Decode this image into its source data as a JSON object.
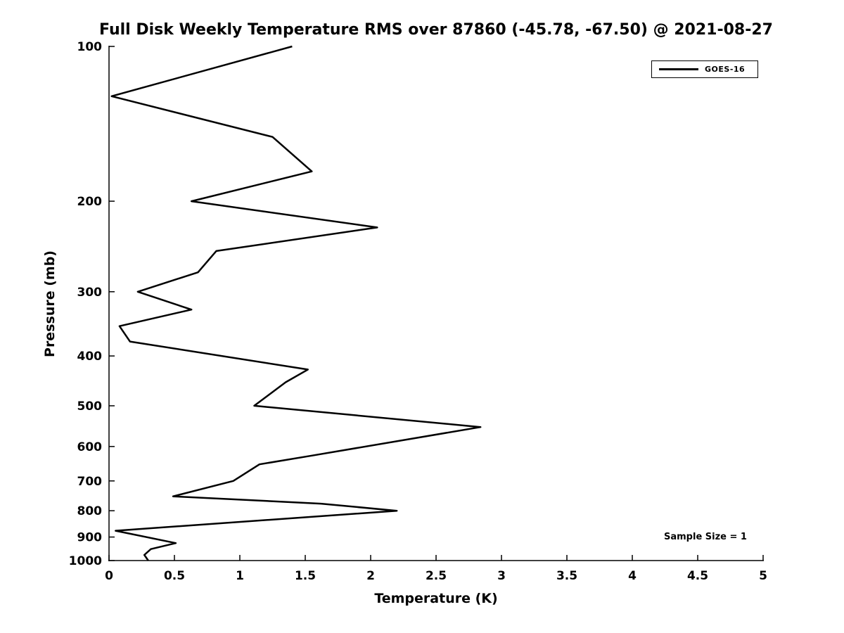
{
  "chart_data": {
    "type": "line",
    "title": "Full Disk Weekly Temperature RMS over 87860 (-45.78, -67.50) @ 2021-08-27",
    "xlabel": "Temperature (K)",
    "ylabel": "Pressure (mb)",
    "xlim": [
      0,
      5
    ],
    "ylim": [
      100,
      1000
    ],
    "yscale": "log",
    "y_inverted": true,
    "grid": false,
    "legend_position": "top-right",
    "xticks": [
      0,
      0.5,
      1,
      1.5,
      2,
      2.5,
      3,
      3.5,
      4,
      4.5,
      5
    ],
    "xtick_labels": [
      "0",
      "0.5",
      "1",
      "1.5",
      "2",
      "2.5",
      "3",
      "3.5",
      "4",
      "4.5",
      "5"
    ],
    "yticks": [
      100,
      200,
      300,
      400,
      500,
      600,
      700,
      800,
      900,
      1000
    ],
    "ytick_labels": [
      "100",
      "200",
      "300",
      "400",
      "500",
      "600",
      "700",
      "800",
      "900",
      "1000"
    ],
    "series": [
      {
        "name": "GOES-16",
        "color": "#000000",
        "linewidth": 2.5,
        "points_format": "[pressure_mb, temperature_rms_K]",
        "points": [
          [
            100,
            1.4
          ],
          [
            125,
            0.02
          ],
          [
            150,
            1.25
          ],
          [
            175,
            1.55
          ],
          [
            200,
            0.63
          ],
          [
            225,
            2.05
          ],
          [
            250,
            0.82
          ],
          [
            275,
            0.68
          ],
          [
            300,
            0.22
          ],
          [
            325,
            0.63
          ],
          [
            350,
            0.08
          ],
          [
            375,
            0.16
          ],
          [
            425,
            1.52
          ],
          [
            450,
            1.35
          ],
          [
            500,
            1.11
          ],
          [
            550,
            2.84
          ],
          [
            625,
            1.55
          ],
          [
            650,
            1.15
          ],
          [
            700,
            0.95
          ],
          [
            750,
            0.49
          ],
          [
            775,
            1.62
          ],
          [
            800,
            2.2
          ],
          [
            875,
            0.05
          ],
          [
            925,
            0.51
          ],
          [
            950,
            0.32
          ],
          [
            975,
            0.27
          ],
          [
            1000,
            0.3
          ]
        ]
      }
    ],
    "annotations": [
      {
        "text": "Sample Size = 1"
      }
    ],
    "axis_color": "#000000",
    "background_color": "#ffffff"
  }
}
